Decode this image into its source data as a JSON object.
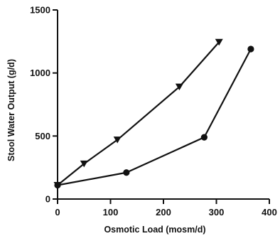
{
  "chart_data": {
    "type": "line",
    "title": "",
    "xlabel": "Osmotic Load (mosm/d)",
    "ylabel": "Stool Water Output (g/d)",
    "xlim": [
      0,
      400
    ],
    "ylim": [
      0,
      1500
    ],
    "x_ticks": [
      0,
      100,
      200,
      300,
      400
    ],
    "x_tick_labels": [
      "0",
      "100",
      "200",
      "300",
      "400"
    ],
    "y_ticks": [
      0,
      500,
      1000,
      1500
    ],
    "y_tick_labels": [
      "0",
      "500",
      "1000",
      "1500"
    ],
    "grid": false,
    "legend": "none",
    "series": [
      {
        "marker": "triangle-down",
        "color": "#111111",
        "points": [
          {
            "x": 0,
            "y": 110
          },
          {
            "x": 50,
            "y": 280
          },
          {
            "x": 113,
            "y": 470
          },
          {
            "x": 230,
            "y": 890
          },
          {
            "x": 305,
            "y": 1245
          }
        ]
      },
      {
        "marker": "circle",
        "color": "#111111",
        "points": [
          {
            "x": 0,
            "y": 110
          },
          {
            "x": 130,
            "y": 210
          },
          {
            "x": 277,
            "y": 490
          },
          {
            "x": 365,
            "y": 1190
          }
        ]
      }
    ]
  }
}
